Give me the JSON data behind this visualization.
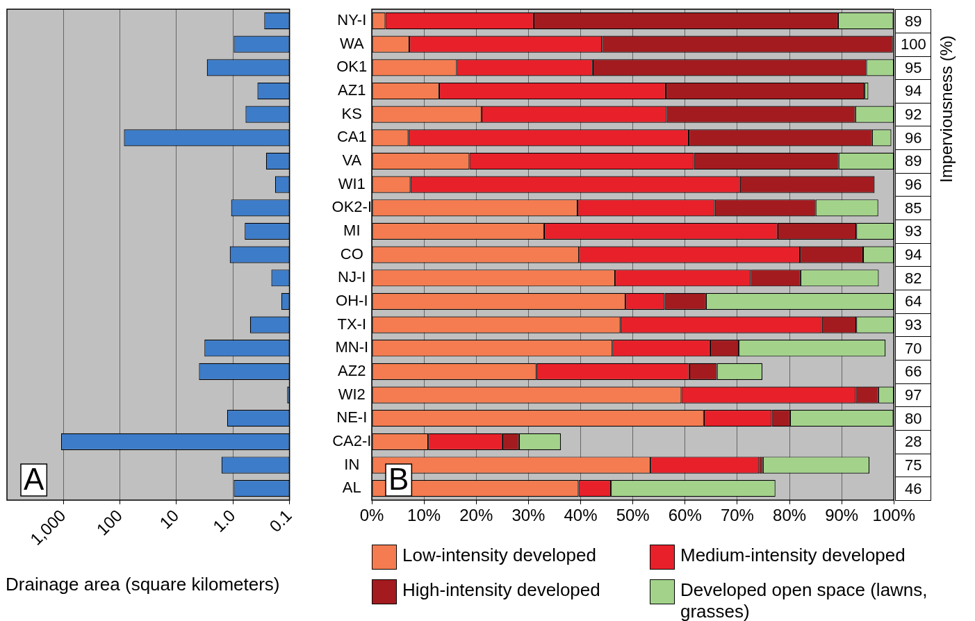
{
  "chart_data": [
    {
      "type": "bar",
      "orientation": "horizontal",
      "log": "x",
      "xlabel": "Drainage area (square kilometers)",
      "annotations": [
        "A"
      ],
      "categories": [
        null,
        null,
        null,
        null,
        null,
        null,
        null,
        null,
        null,
        null,
        null,
        null,
        null,
        null,
        null,
        null,
        null,
        null,
        null,
        null,
        null
      ],
      "values": [
        0.28,
        0.97,
        2.9,
        0.37,
        0.6,
        85,
        0.26,
        0.18,
        1.08,
        0.62,
        1.14,
        0.21,
        0.14,
        0.5,
        3.2,
        4.0,
        0.11,
        1.27,
        1100,
        1.6,
        0.97
      ],
      "color": "#3d7cc9",
      "xlim": [
        10000,
        0.1
      ],
      "xticks": [
        {
          "value": 1000,
          "label": "1,000"
        },
        100,
        10,
        {
          "value": 1,
          "label": "1.0"
        },
        0.1
      ],
      "grid": "x"
    },
    {
      "type": "bar",
      "orientation": "horizontal",
      "stacked": true,
      "annotations": [
        "B"
      ],
      "legend": "bottom",
      "grid": "x",
      "categories": [
        "NY-I",
        "WA",
        "OK1",
        "AZ1",
        "KS",
        "CA1",
        "VA",
        "WI1",
        "OK2-I",
        "MI",
        "CO",
        "NJ-I",
        "OH-I",
        "TX-I",
        "MN-I",
        "AZ2",
        "WI2",
        "NE-I",
        "CA2-I",
        "IN",
        "AL"
      ],
      "xlim": [
        0,
        100
      ],
      "xticks": [
        {
          "value": 0,
          "label": "0%"
        },
        {
          "value": 10,
          "label": "10%"
        },
        {
          "value": 20,
          "label": "20%"
        },
        {
          "value": 30,
          "label": "30%"
        },
        {
          "value": 40,
          "label": "40%"
        },
        {
          "value": 50,
          "label": "50%"
        },
        {
          "value": 60,
          "label": "60%"
        },
        {
          "value": 70,
          "label": "70%"
        },
        {
          "value": 80,
          "label": "80%"
        },
        {
          "value": 90,
          "label": "90%"
        },
        {
          "value": 100,
          "label": "100%"
        }
      ],
      "series": [
        {
          "name": "Low-intensity developed",
          "color": "#f47c50",
          "values": [
            2.6,
            7.2,
            16.3,
            12.9,
            21.0,
            7.0,
            18.7,
            7.4,
            39.4,
            33.0,
            39.7,
            46.6,
            48.6,
            47.6,
            46.1,
            31.5,
            59.3,
            63.6,
            10.8,
            53.4,
            39.6
          ]
        },
        {
          "name": "Medium-intensity developed",
          "color": "#e8202a",
          "values": [
            28.4,
            36.9,
            26.0,
            43.4,
            35.5,
            53.7,
            43.0,
            63.1,
            26.3,
            44.7,
            42.3,
            26.0,
            7.5,
            38.6,
            18.7,
            29.3,
            33.4,
            13.0,
            14.2,
            20.8,
            6.2
          ]
        },
        {
          "name": "High-intensity developed",
          "color": "#a31b1f",
          "values": [
            58.3,
            55.7,
            52.4,
            38.1,
            36.1,
            35.1,
            27.7,
            25.8,
            19.3,
            15.1,
            12.1,
            9.5,
            7.9,
            6.6,
            5.5,
            5.3,
            4.3,
            3.5,
            3.2,
            0.7,
            0
          ]
        },
        {
          "name": "Developed open space (lawns, grasses)",
          "color": "#a3d38a",
          "values": [
            10.6,
            0,
            5.3,
            0.7,
            7.4,
            3.7,
            10.6,
            0,
            12.0,
            7.2,
            5.9,
            15.0,
            36.0,
            7.2,
            28.1,
            8.7,
            3.0,
            19.8,
            8.0,
            20.4,
            31.5
          ]
        }
      ]
    },
    {
      "type": "other",
      "ylabel": "Imperviousness (%)",
      "annotations": [
        "89",
        "100",
        "95",
        "94",
        "92",
        "96",
        "89",
        "96",
        "85",
        "93",
        "94",
        "82",
        "64",
        "93",
        "70",
        "66",
        "97",
        "80",
        "28",
        "75",
        "46"
      ]
    }
  ]
}
